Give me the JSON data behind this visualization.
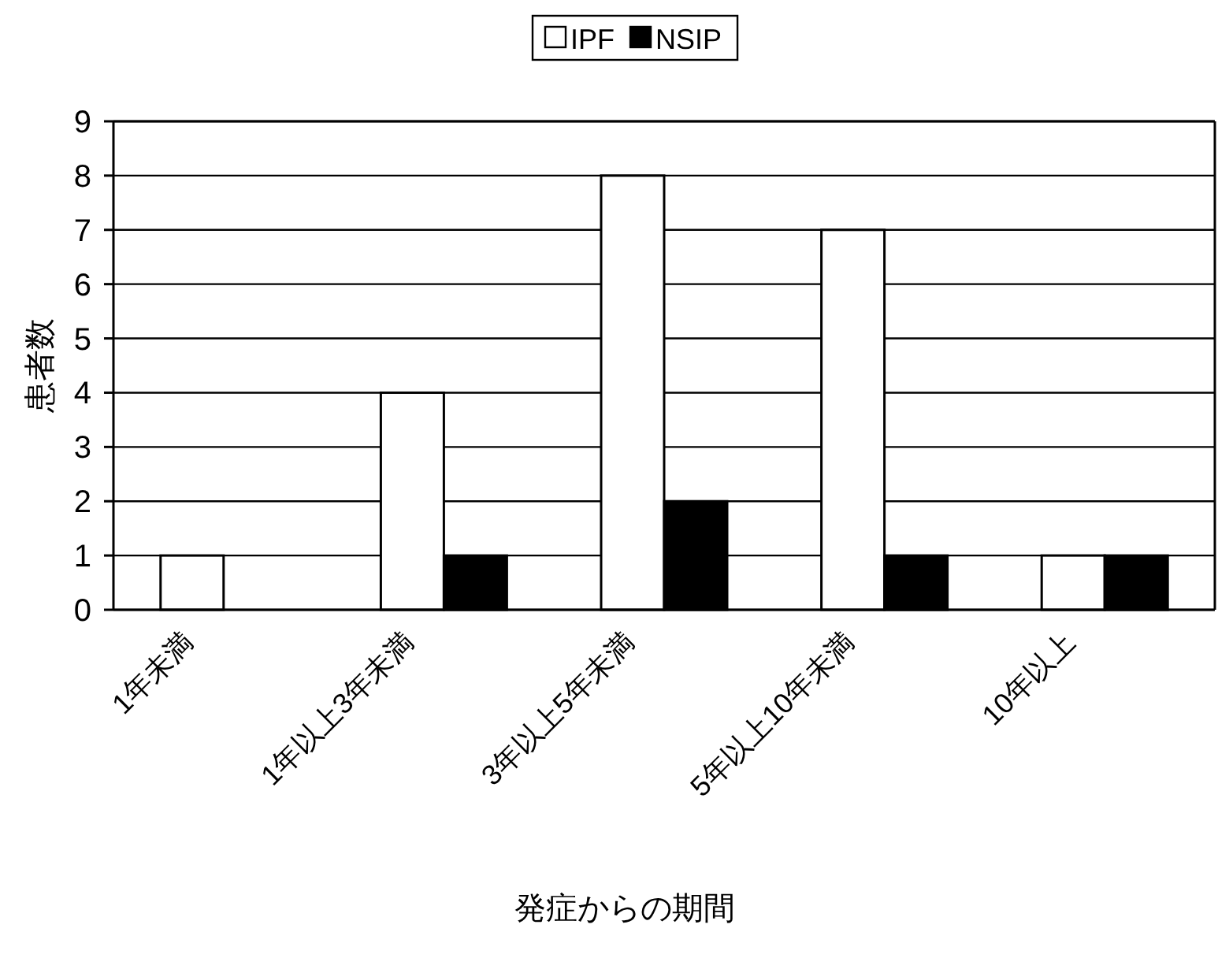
{
  "chart_data": {
    "type": "bar",
    "xlabel": "発症からの期間",
    "ylabel": "患者数",
    "categories": [
      "1年未満",
      "1年以上3年未満",
      "3年以上5年未満",
      "5年以上10年未満",
      "10年以上"
    ],
    "series": [
      {
        "name": "IPF",
        "color": "#ffffff",
        "values": [
          1,
          4,
          8,
          7,
          1
        ]
      },
      {
        "name": "NSIP",
        "color": "#000000",
        "values": [
          0,
          1,
          2,
          1,
          1
        ]
      }
    ],
    "ylim": [
      0,
      9
    ],
    "yticks": [
      0,
      1,
      2,
      3,
      4,
      5,
      6,
      7,
      8,
      9
    ],
    "grid": "y",
    "legend": "top"
  }
}
